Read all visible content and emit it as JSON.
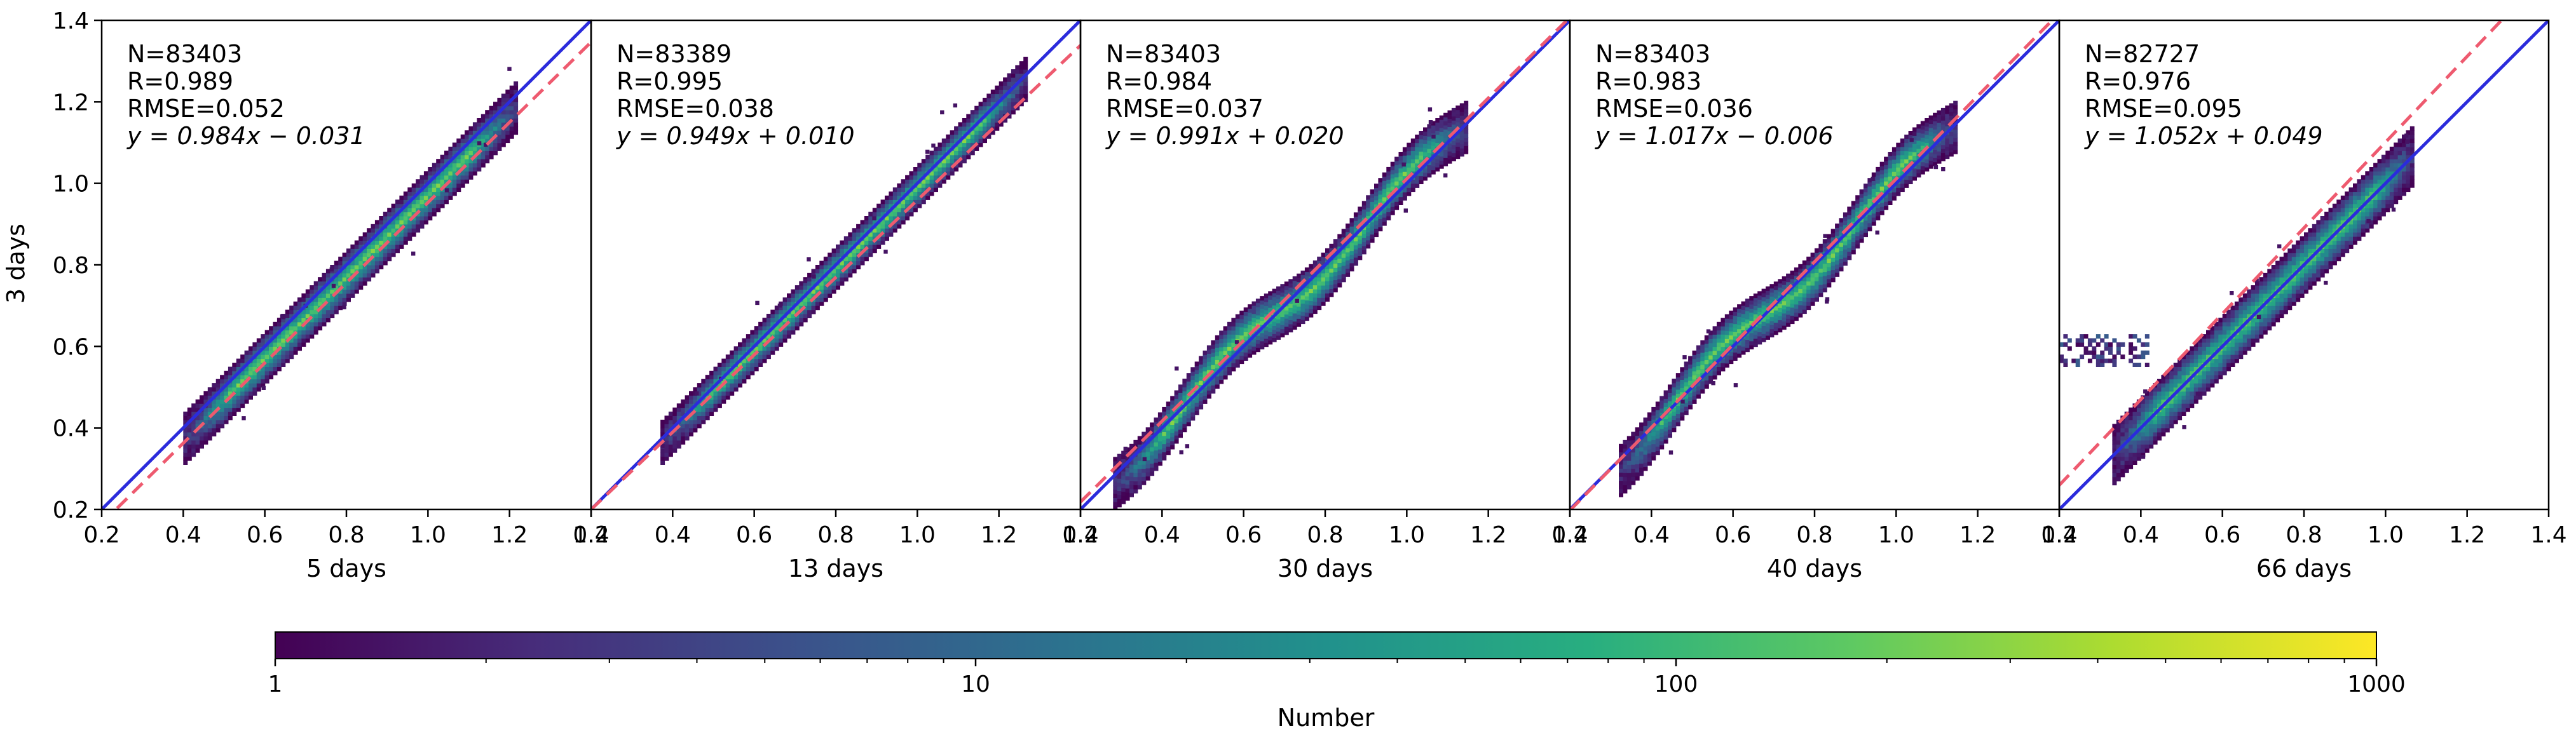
{
  "chart_data": {
    "type": "heatmap",
    "shared": {
      "ylabel": "3 days",
      "xlim": [
        0.2,
        1.4
      ],
      "ylim": [
        0.2,
        1.4
      ],
      "xticks": [
        "0.2",
        "0.4",
        "0.6",
        "0.8",
        "1.0",
        "1.2",
        "1.4"
      ],
      "yticks": [
        "0.2",
        "0.4",
        "0.6",
        "0.8",
        "1.0",
        "1.2",
        "1.4"
      ],
      "one_to_one_line_color": "#2b2bdc",
      "fit_line_color": "#ee5a6f",
      "colormap": "viridis",
      "colorbar": {
        "label": "Number",
        "scale": "log",
        "range": [
          1,
          1000
        ],
        "ticks": [
          "1",
          "10",
          "100",
          "1000"
        ]
      }
    },
    "panels": [
      {
        "xlabel": "5 days",
        "n_text": "N=83403",
        "r_text": "R=0.989",
        "rmse_text": "RMSE=0.052",
        "eq_text": "y = 0.984x − 0.031",
        "slope": 0.984,
        "intercept": -0.031,
        "dens_offset": -0.03,
        "dens_width": 0.045,
        "x_range": [
          0.4,
          1.22
        ],
        "wave": 0.0,
        "tail": false
      },
      {
        "xlabel": "13 days",
        "n_text": "N=83389",
        "r_text": "R=0.995",
        "rmse_text": "RMSE=0.038",
        "eq_text": "y = 0.949x + 0.010",
        "slope": 0.949,
        "intercept": 0.01,
        "dens_offset": -0.01,
        "dens_width": 0.035,
        "x_range": [
          0.37,
          1.27
        ],
        "wave": 0.0,
        "tail": false
      },
      {
        "xlabel": "30 days",
        "n_text": "N=83403",
        "r_text": "R=0.984",
        "rmse_text": "RMSE=0.037",
        "eq_text": "y = 0.991x + 0.020",
        "slope": 0.991,
        "intercept": 0.02,
        "dens_offset": 0.0,
        "dens_width": 0.045,
        "x_range": [
          0.28,
          1.15
        ],
        "wave": 0.03,
        "tail": false
      },
      {
        "xlabel": "40 days",
        "n_text": "N=83403",
        "r_text": "R=0.983",
        "rmse_text": "RMSE=0.036",
        "eq_text": "y = 1.017x − 0.006",
        "slope": 1.017,
        "intercept": -0.006,
        "dens_offset": 0.0,
        "dens_width": 0.045,
        "x_range": [
          0.32,
          1.15
        ],
        "wave": 0.03,
        "tail": false
      },
      {
        "xlabel": "66 days",
        "n_text": "N=82727",
        "r_text": "R=0.976",
        "rmse_text": "RMSE=0.095",
        "eq_text": "y = 1.052x + 0.049",
        "slope": 1.052,
        "intercept": 0.049,
        "dens_offset": 0.0,
        "dens_width": 0.06,
        "x_range": [
          0.33,
          1.07
        ],
        "wave": 0.0,
        "tail": true
      }
    ]
  }
}
